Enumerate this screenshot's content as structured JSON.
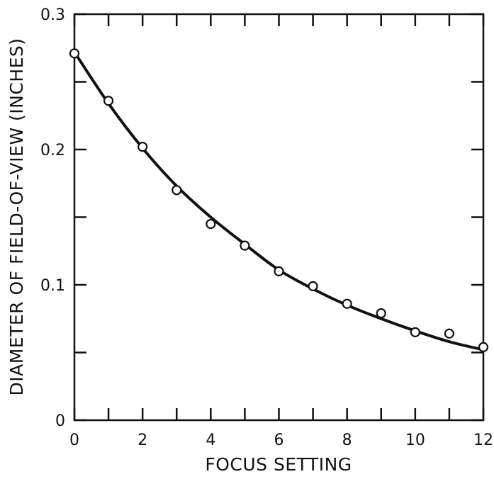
{
  "chart_data": {
    "type": "scatter",
    "title": "",
    "xlabel": "FOCUS SETTING",
    "ylabel": "DIAMETER OF FIELD-OF-VIEW (INCHES)",
    "xlim": [
      0,
      12
    ],
    "ylim": [
      0,
      0.3
    ],
    "x_ticks": [
      0,
      2,
      4,
      6,
      8,
      10,
      12
    ],
    "x_tick_labels": [
      "0",
      "2",
      "4",
      "6",
      "8",
      "10",
      "12"
    ],
    "x_minor_ticks": [
      1,
      3,
      5,
      7,
      9,
      11
    ],
    "y_ticks": [
      0,
      0.1,
      0.2,
      0.3
    ],
    "y_tick_labels": [
      "0",
      "0.1",
      "0.2",
      "0.3"
    ],
    "y_minor_ticks": [
      0.05,
      0.15,
      0.25
    ],
    "grid": false,
    "series": [
      {
        "marker": "open-circle",
        "x": [
          0,
          1,
          2,
          3,
          4,
          5,
          6,
          7,
          8,
          9,
          10,
          11,
          12
        ],
        "y": [
          0.271,
          0.236,
          0.202,
          0.17,
          0.145,
          0.129,
          0.11,
          0.099,
          0.086,
          0.079,
          0.065,
          0.064,
          0.054
        ]
      },
      {
        "style": "solid-curve",
        "x": [
          0,
          1,
          2,
          3,
          4,
          5,
          6,
          7,
          8,
          9,
          10,
          11,
          12
        ],
        "y": [
          0.272,
          0.234,
          0.201,
          0.173,
          0.15,
          0.13,
          0.111,
          0.097,
          0.085,
          0.075,
          0.066,
          0.058,
          0.052
        ]
      }
    ]
  }
}
